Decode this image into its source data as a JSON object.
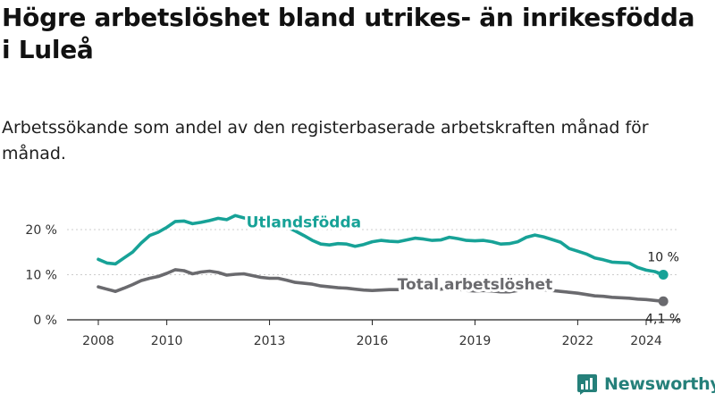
{
  "title": "Högre arbetslöshet bland utrikes- än inrikesfödda i Luleå",
  "subtitle": "Arbetssökande som andel av den registerbaserade arbetskraften månad för månad.",
  "brand": {
    "name": "Newsworthy",
    "icon": "newsworthy-logo-icon"
  },
  "colors": {
    "foreign": "#17a297",
    "total": "#6a6a6e",
    "axis": "#222222",
    "grid": "#cccccc"
  },
  "chart_data": {
    "type": "line",
    "title": "",
    "xlabel": "",
    "ylabel": "",
    "x_range": [
      2008,
      2024.6
    ],
    "y_range": [
      0,
      20
    ],
    "y_ticks": [
      0,
      10,
      20
    ],
    "y_tick_labels": [
      "0 %",
      "10 %",
      "20 %"
    ],
    "x_ticks": [
      2008,
      2010,
      2013,
      2016,
      2019,
      2022,
      2024
    ],
    "x_tick_labels": [
      "2008",
      "2010",
      "2013",
      "2016",
      "2019",
      "2022",
      "2024"
    ],
    "grid": "horizontal",
    "legend": "inline labels",
    "series": [
      {
        "name": "Utlandsfödda",
        "color": "#17a297",
        "end_label": "10 %",
        "points": [
          [
            2008.0,
            13.4
          ],
          [
            2008.25,
            12.6
          ],
          [
            2008.5,
            12.4
          ],
          [
            2008.75,
            13.7
          ],
          [
            2009.0,
            15.0
          ],
          [
            2009.25,
            17.0
          ],
          [
            2009.5,
            18.7
          ],
          [
            2009.75,
            19.4
          ],
          [
            2010.0,
            20.5
          ],
          [
            2010.25,
            21.8
          ],
          [
            2010.5,
            21.9
          ],
          [
            2010.75,
            21.3
          ],
          [
            2011.0,
            21.6
          ],
          [
            2011.25,
            22.0
          ],
          [
            2011.5,
            22.5
          ],
          [
            2011.75,
            22.2
          ],
          [
            2012.0,
            23.1
          ],
          [
            2012.25,
            22.6
          ],
          [
            2012.5,
            22.2
          ],
          [
            2012.75,
            22.1
          ],
          [
            2013.0,
            21.5
          ],
          [
            2013.25,
            21.3
          ],
          [
            2013.5,
            20.6
          ],
          [
            2013.75,
            19.7
          ],
          [
            2014.0,
            18.7
          ],
          [
            2014.25,
            17.6
          ],
          [
            2014.5,
            16.8
          ],
          [
            2014.75,
            16.6
          ],
          [
            2015.0,
            16.9
          ],
          [
            2015.25,
            16.8
          ],
          [
            2015.5,
            16.3
          ],
          [
            2015.75,
            16.7
          ],
          [
            2016.0,
            17.3
          ],
          [
            2016.25,
            17.6
          ],
          [
            2016.5,
            17.4
          ],
          [
            2016.75,
            17.3
          ],
          [
            2017.0,
            17.7
          ],
          [
            2017.25,
            18.1
          ],
          [
            2017.5,
            17.9
          ],
          [
            2017.75,
            17.6
          ],
          [
            2018.0,
            17.7
          ],
          [
            2018.25,
            18.3
          ],
          [
            2018.5,
            18.0
          ],
          [
            2018.75,
            17.6
          ],
          [
            2019.0,
            17.5
          ],
          [
            2019.25,
            17.6
          ],
          [
            2019.5,
            17.3
          ],
          [
            2019.75,
            16.8
          ],
          [
            2020.0,
            16.9
          ],
          [
            2020.25,
            17.3
          ],
          [
            2020.5,
            18.3
          ],
          [
            2020.75,
            18.8
          ],
          [
            2021.0,
            18.4
          ],
          [
            2021.25,
            17.8
          ],
          [
            2021.5,
            17.2
          ],
          [
            2021.75,
            15.8
          ],
          [
            2022.0,
            15.2
          ],
          [
            2022.25,
            14.6
          ],
          [
            2022.5,
            13.7
          ],
          [
            2022.75,
            13.3
          ],
          [
            2023.0,
            12.8
          ],
          [
            2023.25,
            12.7
          ],
          [
            2023.5,
            12.6
          ],
          [
            2023.75,
            11.6
          ],
          [
            2024.0,
            11.0
          ],
          [
            2024.25,
            10.7
          ],
          [
            2024.5,
            10.0
          ]
        ]
      },
      {
        "name": "Total arbetslöshet",
        "color": "#6a6a6e",
        "end_label": "4,1 %",
        "points": [
          [
            2008.0,
            7.3
          ],
          [
            2008.25,
            6.8
          ],
          [
            2008.5,
            6.3
          ],
          [
            2008.75,
            7.0
          ],
          [
            2009.0,
            7.8
          ],
          [
            2009.25,
            8.7
          ],
          [
            2009.5,
            9.2
          ],
          [
            2009.75,
            9.6
          ],
          [
            2010.0,
            10.3
          ],
          [
            2010.25,
            11.1
          ],
          [
            2010.5,
            10.9
          ],
          [
            2010.75,
            10.2
          ],
          [
            2011.0,
            10.6
          ],
          [
            2011.25,
            10.8
          ],
          [
            2011.5,
            10.5
          ],
          [
            2011.75,
            9.9
          ],
          [
            2012.0,
            10.1
          ],
          [
            2012.25,
            10.2
          ],
          [
            2012.5,
            9.8
          ],
          [
            2012.75,
            9.4
          ],
          [
            2013.0,
            9.2
          ],
          [
            2013.25,
            9.2
          ],
          [
            2013.5,
            8.8
          ],
          [
            2013.75,
            8.3
          ],
          [
            2014.0,
            8.1
          ],
          [
            2014.25,
            7.9
          ],
          [
            2014.5,
            7.5
          ],
          [
            2014.75,
            7.3
          ],
          [
            2015.0,
            7.1
          ],
          [
            2015.25,
            7.0
          ],
          [
            2015.5,
            6.8
          ],
          [
            2015.75,
            6.6
          ],
          [
            2016.0,
            6.5
          ],
          [
            2016.25,
            6.6
          ],
          [
            2016.5,
            6.7
          ],
          [
            2016.75,
            6.7
          ],
          [
            2017.0,
            6.9
          ],
          [
            2017.25,
            7.1
          ],
          [
            2017.5,
            6.9
          ],
          [
            2017.75,
            6.7
          ],
          [
            2018.0,
            6.8
          ],
          [
            2018.25,
            7.0
          ],
          [
            2018.5,
            6.8
          ],
          [
            2018.75,
            6.5
          ],
          [
            2019.0,
            6.4
          ],
          [
            2019.25,
            6.5
          ],
          [
            2019.5,
            6.4
          ],
          [
            2019.75,
            6.2
          ],
          [
            2020.0,
            6.2
          ],
          [
            2020.25,
            6.5
          ],
          [
            2020.5,
            6.9
          ],
          [
            2020.75,
            6.9
          ],
          [
            2021.0,
            6.7
          ],
          [
            2021.25,
            6.5
          ],
          [
            2021.5,
            6.3
          ],
          [
            2021.75,
            6.1
          ],
          [
            2022.0,
            5.9
          ],
          [
            2022.25,
            5.6
          ],
          [
            2022.5,
            5.3
          ],
          [
            2022.75,
            5.2
          ],
          [
            2023.0,
            5.0
          ],
          [
            2023.25,
            4.9
          ],
          [
            2023.5,
            4.8
          ],
          [
            2023.75,
            4.6
          ],
          [
            2024.0,
            4.5
          ],
          [
            2024.25,
            4.3
          ],
          [
            2024.5,
            4.1
          ]
        ]
      }
    ]
  }
}
